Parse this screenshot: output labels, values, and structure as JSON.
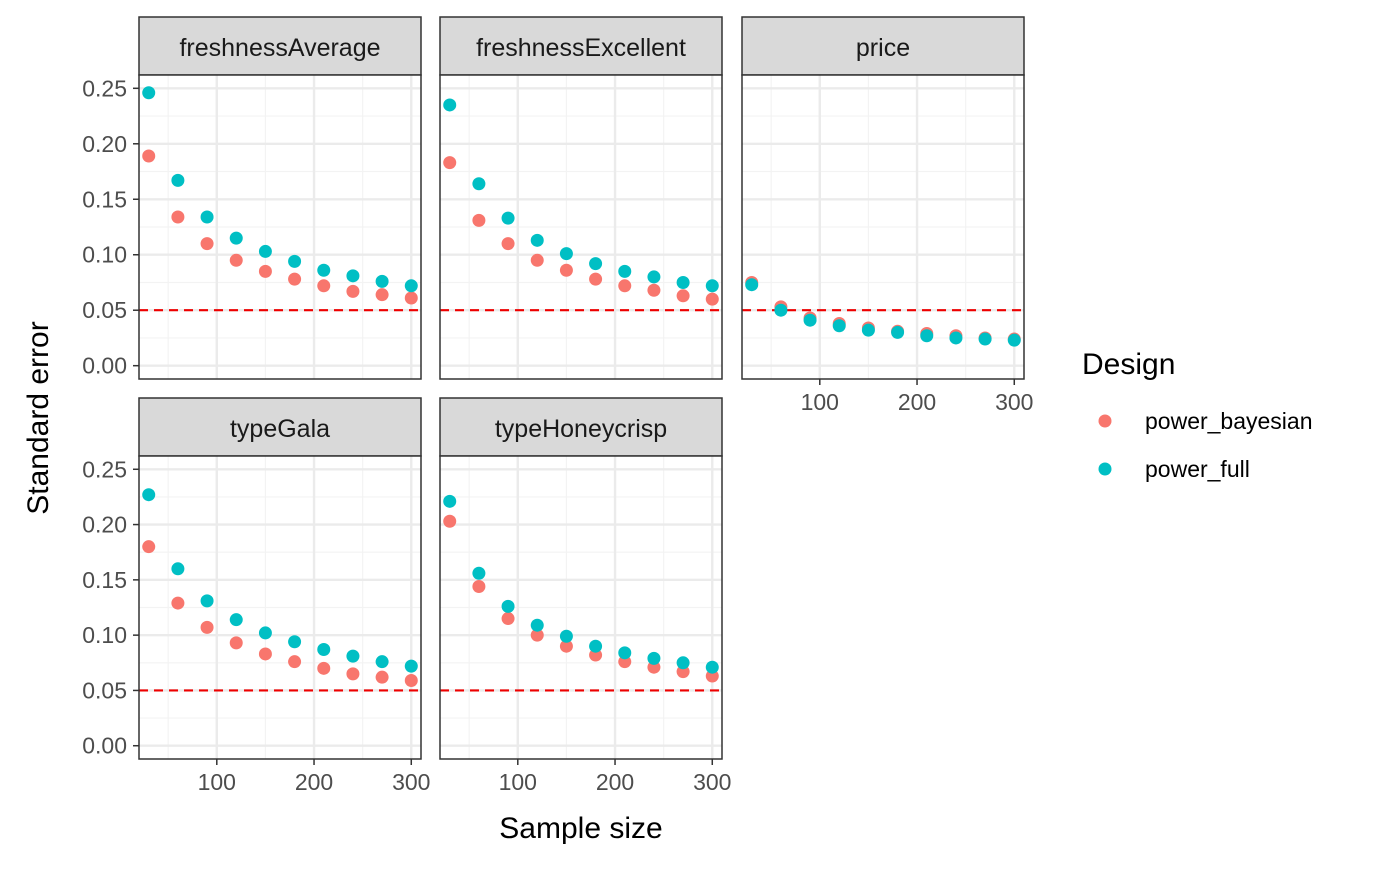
{
  "chart_data": {
    "type": "scatter",
    "xlabel": "Sample size",
    "ylabel": "Standard error",
    "xlim": [
      20,
      310
    ],
    "ylim": [
      -0.012,
      0.262
    ],
    "x_ticks": [
      100,
      200,
      300
    ],
    "y_ticks": [
      0.0,
      0.05,
      0.1,
      0.15,
      0.2,
      0.25
    ],
    "y_tick_labels": [
      "0.00",
      "0.05",
      "0.10",
      "0.15",
      "0.20",
      "0.25"
    ],
    "reference_line": {
      "y": 0.05,
      "color": "#ee0000",
      "style": "dashed"
    },
    "grid": true,
    "legend": {
      "title": "Design",
      "placement": "right",
      "entries": [
        {
          "name": "power_bayesian",
          "color": "#F8766D"
        },
        {
          "name": "power_full",
          "color": "#00BFC4"
        }
      ]
    },
    "x": [
      30,
      60,
      90,
      120,
      150,
      180,
      210,
      240,
      270,
      300
    ],
    "panels": [
      {
        "title": "freshnessAverage",
        "series": [
          {
            "name": "power_bayesian",
            "values": [
              0.189,
              0.134,
              0.11,
              0.095,
              0.085,
              0.078,
              0.072,
              0.067,
              0.064,
              0.061
            ]
          },
          {
            "name": "power_full",
            "values": [
              0.246,
              0.167,
              0.134,
              0.115,
              0.103,
              0.094,
              0.086,
              0.081,
              0.076,
              0.072
            ]
          }
        ]
      },
      {
        "title": "freshnessExcellent",
        "series": [
          {
            "name": "power_bayesian",
            "values": [
              0.183,
              0.131,
              0.11,
              0.095,
              0.086,
              0.078,
              0.072,
              0.068,
              0.063,
              0.06
            ]
          },
          {
            "name": "power_full",
            "values": [
              0.235,
              0.164,
              0.133,
              0.113,
              0.101,
              0.092,
              0.085,
              0.08,
              0.075,
              0.072
            ]
          }
        ]
      },
      {
        "title": "price",
        "series": [
          {
            "name": "power_bayesian",
            "values": [
              0.075,
              0.053,
              0.043,
              0.038,
              0.034,
              0.031,
              0.029,
              0.027,
              0.025,
              0.024
            ]
          },
          {
            "name": "power_full",
            "values": [
              0.073,
              0.05,
              0.041,
              0.036,
              0.032,
              0.03,
              0.027,
              0.025,
              0.024,
              0.023
            ]
          }
        ]
      },
      {
        "title": "typeGala",
        "series": [
          {
            "name": "power_bayesian",
            "values": [
              0.18,
              0.129,
              0.107,
              0.093,
              0.083,
              0.076,
              0.07,
              0.065,
              0.062,
              0.059
            ]
          },
          {
            "name": "power_full",
            "values": [
              0.227,
              0.16,
              0.131,
              0.114,
              0.102,
              0.094,
              0.087,
              0.081,
              0.076,
              0.072
            ]
          }
        ]
      },
      {
        "title": "typeHoneycrisp",
        "series": [
          {
            "name": "power_bayesian",
            "values": [
              0.203,
              0.144,
              0.115,
              0.1,
              0.09,
              0.082,
              0.076,
              0.071,
              0.067,
              0.063
            ]
          },
          {
            "name": "power_full",
            "values": [
              0.221,
              0.156,
              0.126,
              0.109,
              0.099,
              0.09,
              0.084,
              0.079,
              0.075,
              0.071
            ]
          }
        ]
      }
    ]
  }
}
